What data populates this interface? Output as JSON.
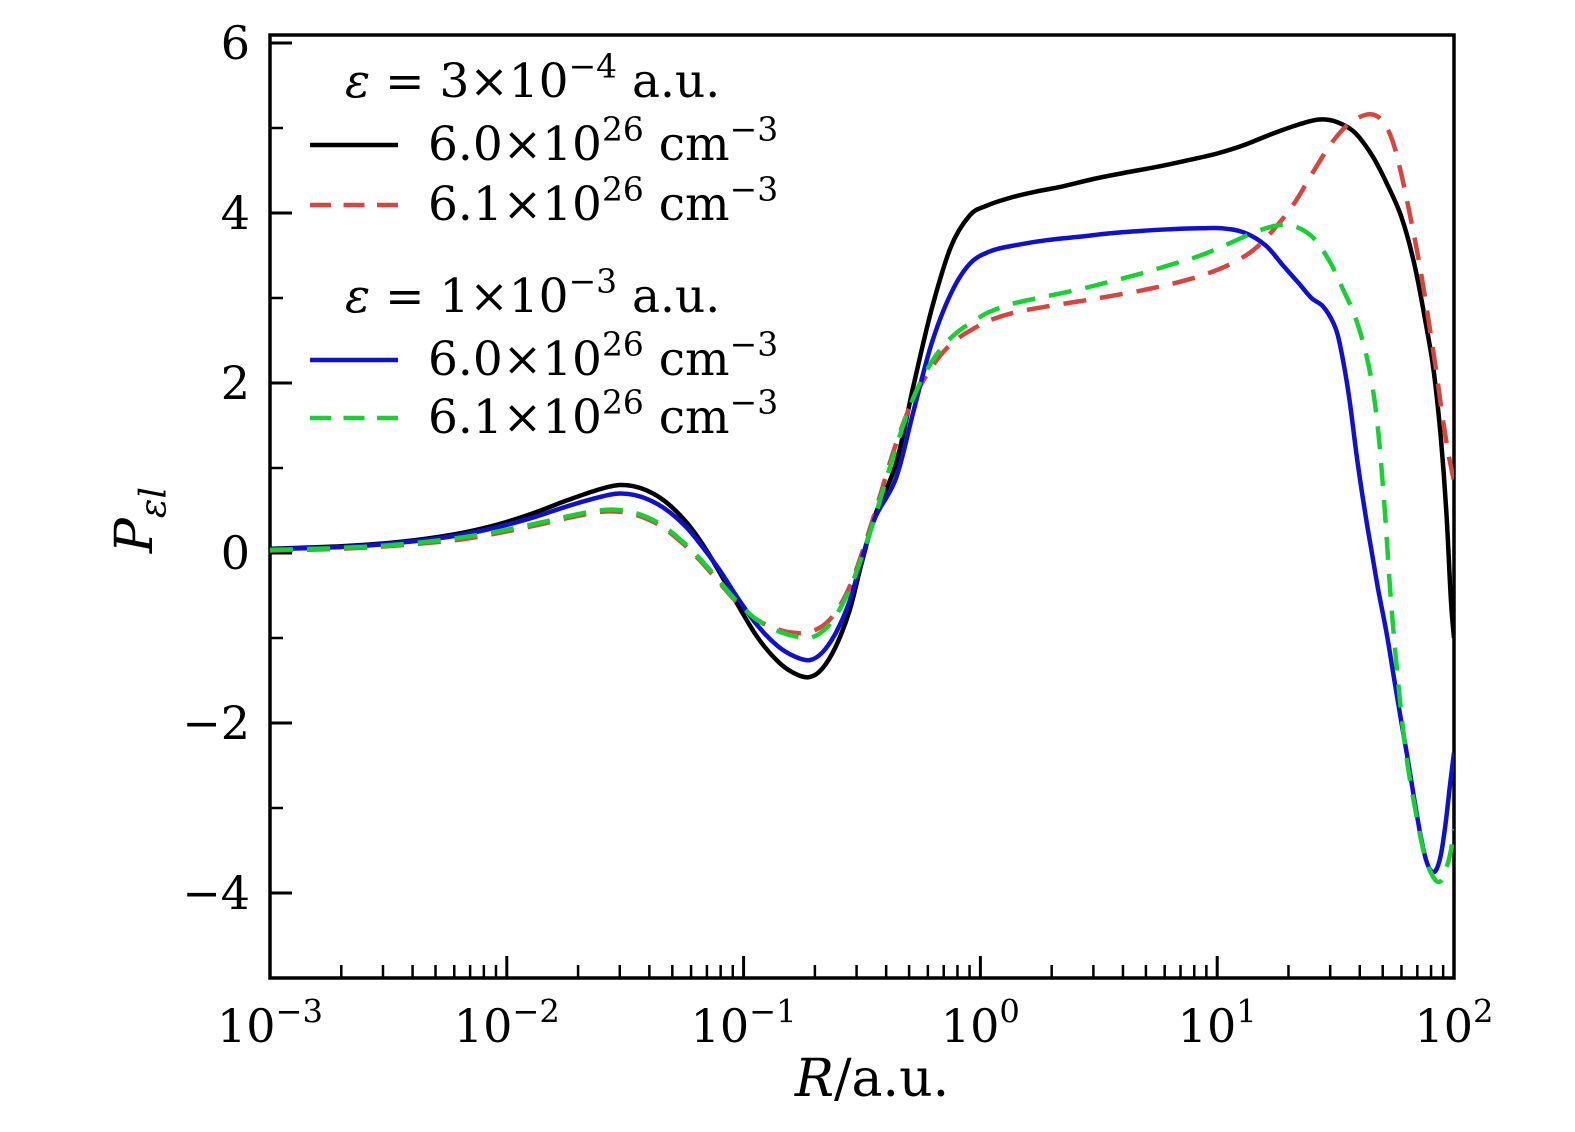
{
  "figure": {
    "background": "#ffffff",
    "plot_box_color": "#000000"
  },
  "axes": {
    "x": {
      "label_parts": [
        {
          "i": "R"
        },
        {
          "t": "/a.u."
        }
      ],
      "scale": "log",
      "min": 0.001,
      "max": 100,
      "major_ticks": [
        {
          "value": 0.001,
          "label_parts": [
            {
              "t": "10"
            },
            {
              "sup": "−3"
            }
          ]
        },
        {
          "value": 0.01,
          "label_parts": [
            {
              "t": "10"
            },
            {
              "sup": "−2"
            }
          ]
        },
        {
          "value": 0.1,
          "label_parts": [
            {
              "t": "10"
            },
            {
              "sup": "−1"
            }
          ]
        },
        {
          "value": 1,
          "label_parts": [
            {
              "t": "10"
            },
            {
              "sup": "0"
            }
          ]
        },
        {
          "value": 10,
          "label_parts": [
            {
              "t": "10"
            },
            {
              "sup": "1"
            }
          ]
        },
        {
          "value": 100,
          "label_parts": [
            {
              "t": "10"
            },
            {
              "sup": "2"
            }
          ]
        }
      ],
      "minor_subdivisions": [
        2,
        3,
        4,
        5,
        6,
        7,
        8,
        9
      ]
    },
    "y": {
      "label_parts": [
        {
          "i": "P"
        },
        {
          "isub": "εl"
        }
      ],
      "min": -5,
      "max": 6.09,
      "major_ticks": [
        {
          "value": 6,
          "label": "6"
        },
        {
          "value": 4,
          "label": "4"
        },
        {
          "value": 2,
          "label": "2"
        },
        {
          "value": 0,
          "label": "0"
        },
        {
          "value": -2,
          "label": "−2"
        },
        {
          "value": -4,
          "label": "−4"
        }
      ],
      "minor_ticks": [
        5,
        3,
        1,
        -1,
        -3
      ]
    }
  },
  "legend": {
    "groups": [
      {
        "heading_parts": [
          {
            "i": "ε"
          },
          {
            "t": " = 3×10"
          },
          {
            "sup": "−4"
          },
          {
            "t": " a.u."
          }
        ],
        "entries": [
          {
            "series": "eps3e-4_n6.0e26",
            "color": "#000000",
            "style": "solid",
            "label_parts": [
              {
                "t": "6.0×10"
              },
              {
                "sup": "26"
              },
              {
                "t": " cm"
              },
              {
                "sup": "−3"
              }
            ]
          },
          {
            "series": "eps3e-4_n6.1e26",
            "color": "#d6453f",
            "style": "dashed",
            "label_parts": [
              {
                "t": "6.1×10"
              },
              {
                "sup": "26"
              },
              {
                "t": " cm"
              },
              {
                "sup": "−3"
              }
            ]
          }
        ]
      },
      {
        "heading_parts": [
          {
            "i": "ε"
          },
          {
            "t": " = 1×10"
          },
          {
            "sup": "−3"
          },
          {
            "t": " a.u."
          }
        ],
        "entries": [
          {
            "series": "eps1e-3_n6.0e26",
            "color": "#1010cf",
            "style": "solid",
            "label_parts": [
              {
                "t": "6.0×10"
              },
              {
                "sup": "26"
              },
              {
                "t": " cm"
              },
              {
                "sup": "−3"
              }
            ]
          },
          {
            "series": "eps1e-3_n6.1e26",
            "color": "#17d133",
            "style": "dashed",
            "label_parts": [
              {
                "t": "6.1×10"
              },
              {
                "sup": "26"
              },
              {
                "t": " cm"
              },
              {
                "sup": "−3"
              }
            ]
          }
        ]
      }
    ]
  },
  "chart_data": {
    "type": "line",
    "title": "",
    "xlabel": "R/a.u.",
    "ylabel": "P_εl",
    "x_scale": "log",
    "xlim": [
      0.001,
      100
    ],
    "ylim": [
      -5,
      6.09
    ],
    "grid": false,
    "legend_position": "upper-left-inside",
    "series": [
      {
        "name": "epsilon = 3e-4 a.u., 6.0e26 cm^-3",
        "id": "eps3e-4_n6.0e26",
        "color": "#000000",
        "style": "solid",
        "points": [
          [
            0.001,
            0.05
          ],
          [
            0.002,
            0.08
          ],
          [
            0.0035,
            0.13
          ],
          [
            0.006,
            0.22
          ],
          [
            0.009,
            0.33
          ],
          [
            0.013,
            0.47
          ],
          [
            0.018,
            0.62
          ],
          [
            0.024,
            0.74
          ],
          [
            0.03,
            0.8
          ],
          [
            0.037,
            0.76
          ],
          [
            0.046,
            0.62
          ],
          [
            0.057,
            0.37
          ],
          [
            0.068,
            0.08
          ],
          [
            0.08,
            -0.25
          ],
          [
            0.095,
            -0.62
          ],
          [
            0.115,
            -1.0
          ],
          [
            0.14,
            -1.28
          ],
          [
            0.165,
            -1.42
          ],
          [
            0.19,
            -1.46
          ],
          [
            0.215,
            -1.36
          ],
          [
            0.245,
            -1.1
          ],
          [
            0.28,
            -0.68
          ],
          [
            0.315,
            -0.12
          ],
          [
            0.36,
            0.45
          ],
          [
            0.44,
            1.05
          ],
          [
            0.52,
            1.95
          ],
          [
            0.62,
            2.85
          ],
          [
            0.75,
            3.6
          ],
          [
            0.9,
            3.97
          ],
          [
            1.05,
            4.08
          ],
          [
            1.3,
            4.17
          ],
          [
            1.7,
            4.25
          ],
          [
            2.2,
            4.31
          ],
          [
            3.0,
            4.4
          ],
          [
            4.0,
            4.47
          ],
          [
            5.5,
            4.54
          ],
          [
            7.5,
            4.62
          ],
          [
            10,
            4.7
          ],
          [
            13,
            4.8
          ],
          [
            17,
            4.93
          ],
          [
            22,
            5.04
          ],
          [
            27,
            5.1
          ],
          [
            32,
            5.07
          ],
          [
            38,
            4.95
          ],
          [
            45,
            4.68
          ],
          [
            52,
            4.35
          ],
          [
            60,
            3.95
          ],
          [
            68,
            3.4
          ],
          [
            76,
            2.7
          ],
          [
            82,
            2.15
          ],
          [
            88,
            1.35
          ],
          [
            93,
            0.45
          ],
          [
            97,
            -0.55
          ],
          [
            100,
            -1.0
          ]
        ]
      },
      {
        "name": "epsilon = 3e-4 a.u., 6.1e26 cm^-3",
        "id": "eps3e-4_n6.1e26",
        "color": "#d6453f",
        "style": "dashed",
        "points": [
          [
            0.001,
            0.03
          ],
          [
            0.002,
            0.05
          ],
          [
            0.0035,
            0.09
          ],
          [
            0.006,
            0.15
          ],
          [
            0.009,
            0.23
          ],
          [
            0.013,
            0.32
          ],
          [
            0.018,
            0.41
          ],
          [
            0.023,
            0.47
          ],
          [
            0.028,
            0.49
          ],
          [
            0.035,
            0.45
          ],
          [
            0.044,
            0.33
          ],
          [
            0.055,
            0.12
          ],
          [
            0.066,
            -0.1
          ],
          [
            0.078,
            -0.33
          ],
          [
            0.093,
            -0.57
          ],
          [
            0.113,
            -0.78
          ],
          [
            0.14,
            -0.9
          ],
          [
            0.165,
            -0.94
          ],
          [
            0.19,
            -0.93
          ],
          [
            0.22,
            -0.84
          ],
          [
            0.25,
            -0.66
          ],
          [
            0.285,
            -0.35
          ],
          [
            0.325,
            0.1
          ],
          [
            0.37,
            0.6
          ],
          [
            0.43,
            1.2
          ],
          [
            0.5,
            1.7
          ],
          [
            0.58,
            2.05
          ],
          [
            0.68,
            2.33
          ],
          [
            0.8,
            2.52
          ],
          [
            0.95,
            2.65
          ],
          [
            1.1,
            2.74
          ],
          [
            1.4,
            2.83
          ],
          [
            1.9,
            2.9
          ],
          [
            2.6,
            2.96
          ],
          [
            3.5,
            3.02
          ],
          [
            4.8,
            3.09
          ],
          [
            6.5,
            3.17
          ],
          [
            8.5,
            3.26
          ],
          [
            11,
            3.38
          ],
          [
            14,
            3.55
          ],
          [
            17,
            3.78
          ],
          [
            21,
            4.1
          ],
          [
            25,
            4.45
          ],
          [
            30,
            4.8
          ],
          [
            35,
            5.02
          ],
          [
            40,
            5.13
          ],
          [
            45,
            5.16
          ],
          [
            50,
            5.08
          ],
          [
            55,
            4.85
          ],
          [
            60,
            4.45
          ],
          [
            66,
            3.9
          ],
          [
            72,
            3.35
          ],
          [
            78,
            2.75
          ],
          [
            84,
            2.15
          ],
          [
            90,
            1.55
          ],
          [
            95,
            1.15
          ],
          [
            100,
            0.85
          ]
        ]
      },
      {
        "name": "epsilon = 1e-3 a.u., 6.0e26 cm^-3",
        "id": "eps1e-3_n6.0e26",
        "color": "#1010cf",
        "style": "solid",
        "points": [
          [
            0.001,
            0.045
          ],
          [
            0.002,
            0.07
          ],
          [
            0.0035,
            0.12
          ],
          [
            0.006,
            0.2
          ],
          [
            0.009,
            0.3
          ],
          [
            0.013,
            0.42
          ],
          [
            0.018,
            0.55
          ],
          [
            0.024,
            0.65
          ],
          [
            0.03,
            0.7
          ],
          [
            0.037,
            0.66
          ],
          [
            0.046,
            0.53
          ],
          [
            0.057,
            0.31
          ],
          [
            0.068,
            0.05
          ],
          [
            0.08,
            -0.22
          ],
          [
            0.095,
            -0.54
          ],
          [
            0.115,
            -0.86
          ],
          [
            0.14,
            -1.1
          ],
          [
            0.165,
            -1.22
          ],
          [
            0.19,
            -1.26
          ],
          [
            0.215,
            -1.17
          ],
          [
            0.245,
            -0.94
          ],
          [
            0.28,
            -0.57
          ],
          [
            0.315,
            -0.08
          ],
          [
            0.36,
            0.42
          ],
          [
            0.44,
            0.88
          ],
          [
            0.52,
            1.65
          ],
          [
            0.62,
            2.45
          ],
          [
            0.75,
            3.05
          ],
          [
            0.9,
            3.4
          ],
          [
            1.1,
            3.55
          ],
          [
            1.4,
            3.62
          ],
          [
            1.9,
            3.68
          ],
          [
            2.6,
            3.72
          ],
          [
            3.5,
            3.76
          ],
          [
            4.8,
            3.79
          ],
          [
            6.5,
            3.81
          ],
          [
            8.5,
            3.82
          ],
          [
            10.5,
            3.82
          ],
          [
            13,
            3.77
          ],
          [
            16,
            3.62
          ],
          [
            19,
            3.38
          ],
          [
            22,
            3.18
          ],
          [
            25,
            3.0
          ],
          [
            28,
            2.9
          ],
          [
            31,
            2.7
          ],
          [
            33,
            2.45
          ],
          [
            36,
            1.85
          ],
          [
            39,
            1.1
          ],
          [
            42,
            0.5
          ],
          [
            45,
            0.0
          ],
          [
            48,
            -0.45
          ],
          [
            52,
            -0.95
          ],
          [
            56,
            -1.5
          ],
          [
            60,
            -2.0
          ],
          [
            64,
            -2.45
          ],
          [
            68,
            -2.9
          ],
          [
            72,
            -3.3
          ],
          [
            76,
            -3.6
          ],
          [
            80,
            -3.74
          ],
          [
            84,
            -3.73
          ],
          [
            88,
            -3.55
          ],
          [
            92,
            -3.2
          ],
          [
            96,
            -2.75
          ],
          [
            100,
            -2.35
          ]
        ]
      },
      {
        "name": "epsilon = 1e-3 a.u., 6.1e26 cm^-3",
        "id": "eps1e-3_n6.1e26",
        "color": "#17d133",
        "style": "dashed",
        "points": [
          [
            0.001,
            0.035
          ],
          [
            0.002,
            0.06
          ],
          [
            0.0035,
            0.1
          ],
          [
            0.006,
            0.17
          ],
          [
            0.009,
            0.25
          ],
          [
            0.013,
            0.34
          ],
          [
            0.018,
            0.43
          ],
          [
            0.023,
            0.49
          ],
          [
            0.028,
            0.51
          ],
          [
            0.035,
            0.47
          ],
          [
            0.044,
            0.35
          ],
          [
            0.055,
            0.14
          ],
          [
            0.066,
            -0.08
          ],
          [
            0.078,
            -0.31
          ],
          [
            0.093,
            -0.56
          ],
          [
            0.113,
            -0.78
          ],
          [
            0.14,
            -0.92
          ],
          [
            0.165,
            -0.98
          ],
          [
            0.19,
            -1.0
          ],
          [
            0.22,
            -0.9
          ],
          [
            0.25,
            -0.7
          ],
          [
            0.285,
            -0.38
          ],
          [
            0.325,
            0.06
          ],
          [
            0.37,
            0.55
          ],
          [
            0.43,
            1.15
          ],
          [
            0.5,
            1.7
          ],
          [
            0.58,
            2.1
          ],
          [
            0.68,
            2.4
          ],
          [
            0.8,
            2.6
          ],
          [
            0.95,
            2.74
          ],
          [
            1.1,
            2.84
          ],
          [
            1.4,
            2.94
          ],
          [
            1.9,
            3.02
          ],
          [
            2.6,
            3.1
          ],
          [
            3.5,
            3.19
          ],
          [
            4.8,
            3.29
          ],
          [
            6.5,
            3.4
          ],
          [
            8.5,
            3.5
          ],
          [
            11,
            3.63
          ],
          [
            14,
            3.76
          ],
          [
            17,
            3.84
          ],
          [
            20,
            3.86
          ],
          [
            23,
            3.8
          ],
          [
            26,
            3.68
          ],
          [
            30,
            3.42
          ],
          [
            34,
            3.1
          ],
          [
            38,
            2.8
          ],
          [
            42,
            2.4
          ],
          [
            45,
            2.0
          ],
          [
            48,
            1.4
          ],
          [
            51,
            0.5
          ],
          [
            54,
            -0.5
          ],
          [
            58,
            -1.5
          ],
          [
            63,
            -2.4
          ],
          [
            69,
            -3.05
          ],
          [
            75,
            -3.55
          ],
          [
            82,
            -3.82
          ],
          [
            88,
            -3.86
          ],
          [
            93,
            -3.7
          ],
          [
            97,
            -3.5
          ],
          [
            100,
            -3.25
          ]
        ]
      }
    ]
  }
}
